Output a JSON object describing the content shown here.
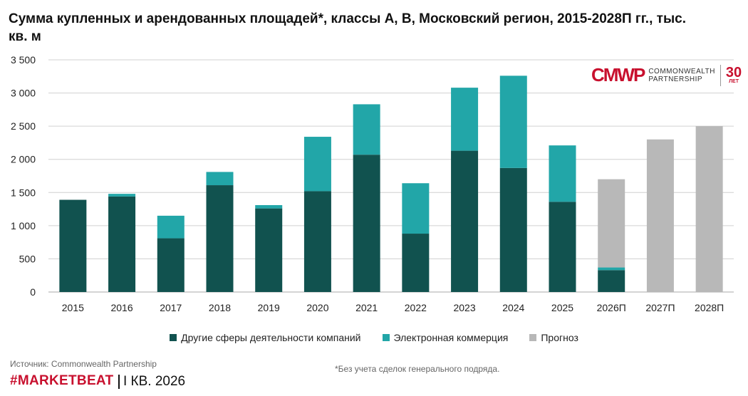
{
  "title": "Сумма купленных и арендованных площадей*, классы А, В, Московский регион, 2015-2028П гг., тыс. кв. м",
  "legend": {
    "other": "Другие сферы деятельности компаний",
    "ecom": "Электронная коммерция",
    "forecast": "Прогноз"
  },
  "source": "Источник: Commonwealth Partnership",
  "footnote": "*Без учета сделок генерального подряда.",
  "brand": "#MARKETBEAT",
  "period": "I КВ. 2026",
  "logo": {
    "mark": "CMWP",
    "line1": "COMMONWEALTH",
    "line2": "PARTNERSHIP",
    "badge": "30",
    "badge_sub": "ЛЕТ"
  },
  "colors": {
    "other": "#11524f",
    "ecom": "#22a6a8",
    "forecast": "#b8b8b8",
    "grid": "#d0d0d0",
    "brand": "#c8102e"
  },
  "chart_data": {
    "type": "bar",
    "stacked": true,
    "title": "Сумма купленных и арендованных площадей*, классы А, В, Московский регион, 2015-2028П гг., тыс. кв. м",
    "categories": [
      "2015",
      "2016",
      "2017",
      "2018",
      "2019",
      "2020",
      "2021",
      "2022",
      "2023",
      "2024",
      "2025",
      "2026П",
      "2027П",
      "2028П"
    ],
    "series": [
      {
        "name": "Другие сферы деятельности компаний",
        "color": "#11524f",
        "values": [
          1390,
          1440,
          810,
          1610,
          1260,
          1520,
          2070,
          880,
          2130,
          1870,
          1360,
          330,
          0,
          0
        ]
      },
      {
        "name": "Электронная коммерция",
        "color": "#22a6a8",
        "values": [
          0,
          40,
          340,
          200,
          50,
          820,
          760,
          760,
          950,
          1390,
          850,
          40,
          0,
          0
        ]
      },
      {
        "name": "Прогноз",
        "color": "#b8b8b8",
        "values": [
          0,
          0,
          0,
          0,
          0,
          0,
          0,
          0,
          0,
          0,
          0,
          1330,
          2300,
          2500
        ]
      }
    ],
    "yticks": [
      "0",
      "500",
      "1 000",
      "1 500",
      "2 000",
      "2 500",
      "3 000",
      "3 500"
    ],
    "ylim": [
      0,
      3500
    ],
    "grid": true,
    "legend_position": "bottom"
  }
}
